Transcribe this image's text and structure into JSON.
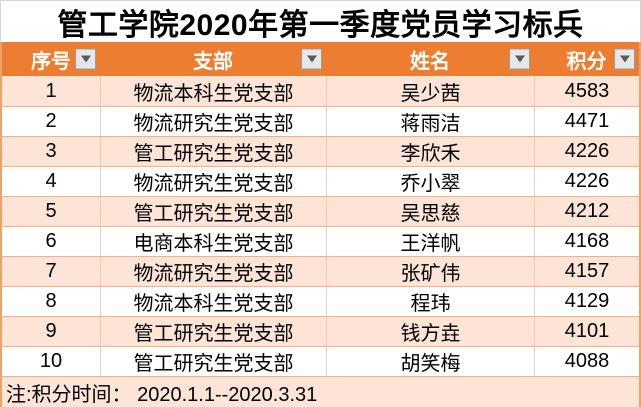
{
  "title": "管工学院2020年第一季度党员学习标兵",
  "table": {
    "columns": [
      {
        "label": "序号"
      },
      {
        "label": "支部"
      },
      {
        "label": "姓名"
      },
      {
        "label": "积分"
      }
    ],
    "rows": [
      {
        "seq": 1,
        "branch": "物流本科生党支部",
        "name": "吴少茜",
        "score": 4583
      },
      {
        "seq": 2,
        "branch": "物流研究生党支部",
        "name": "蒋雨洁",
        "score": 4471
      },
      {
        "seq": 3,
        "branch": "管工研究生党支部",
        "name": "李欣禾",
        "score": 4226
      },
      {
        "seq": 4,
        "branch": "物流研究生党支部",
        "name": "乔小翠",
        "score": 4226
      },
      {
        "seq": 5,
        "branch": "管工研究生党支部",
        "name": "吴思慈",
        "score": 4212
      },
      {
        "seq": 6,
        "branch": "电商本科生党支部",
        "name": "王洋帆",
        "score": 4168
      },
      {
        "seq": 7,
        "branch": "物流研究生党支部",
        "name": "张矿伟",
        "score": 4157
      },
      {
        "seq": 8,
        "branch": "物流本科生党支部",
        "name": "程玮",
        "score": 4129
      },
      {
        "seq": 9,
        "branch": "管工研究生党支部",
        "name": "钱方垚",
        "score": 4101
      },
      {
        "seq": 10,
        "branch": "管工研究生党支部",
        "name": "胡笑梅",
        "score": 4088
      }
    ]
  },
  "footnote": "注:积分时间： 2020.1.1--2020.3.31",
  "icons": {
    "filter_dropdown": "triangle-down-icon"
  },
  "colors": {
    "header_bg": "#ED7D31",
    "header_text": "#FFFFFF",
    "row_alt_bg": "#FCE4D6",
    "row_bg": "#FFFFFF",
    "grid_line": "#F4B183",
    "outer_border": "#E9A468",
    "filter_button_bg": "#E8E7E7",
    "filter_button_border": "#9B9B9B",
    "filter_arrow": "#5A5A5A",
    "title_text": "#000000"
  }
}
